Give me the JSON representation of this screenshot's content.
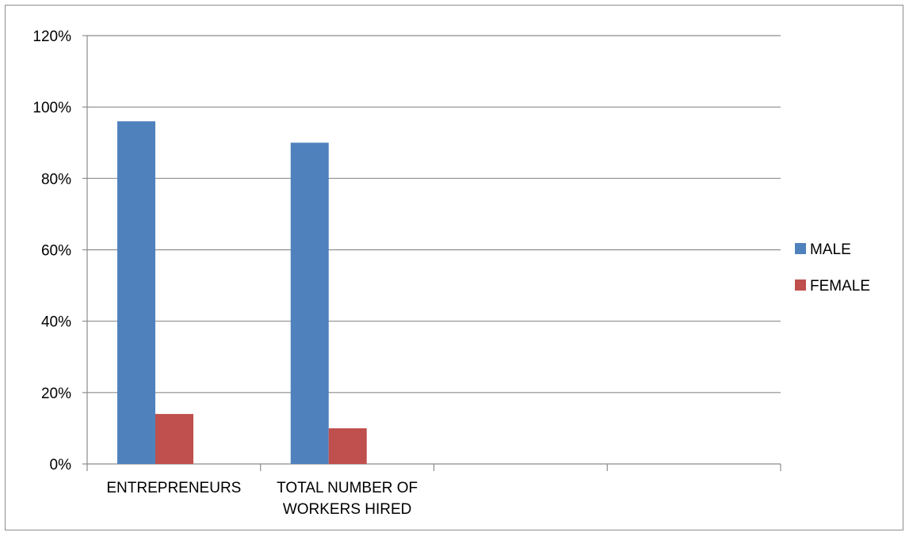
{
  "chart_data": {
    "type": "bar",
    "categories": [
      [
        "ENTREPRENEURS"
      ],
      [
        "TOTAL NUMBER OF",
        "WORKERS HIRED"
      ],
      [
        ""
      ],
      [
        ""
      ]
    ],
    "series": [
      {
        "name": "MALE",
        "values": [
          0.96,
          0.9,
          null,
          null
        ],
        "color": "#4f81bd"
      },
      {
        "name": "FEMALE",
        "values": [
          0.14,
          0.1,
          null,
          null
        ],
        "color": "#c0504d"
      }
    ],
    "y_ticks": [
      "0%",
      "20%",
      "40%",
      "60%",
      "80%",
      "100%",
      "120%"
    ],
    "ylim": [
      0,
      1.2
    ],
    "grid": true,
    "legend_position": "right",
    "title": "",
    "xlabel": "",
    "ylabel": ""
  }
}
